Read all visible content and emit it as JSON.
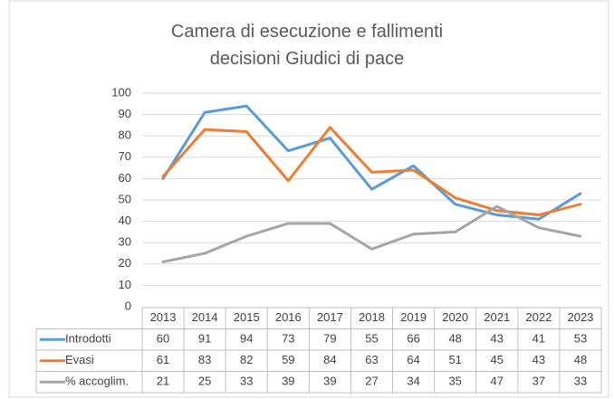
{
  "chart_data": {
    "type": "line",
    "title": "Camera di esecuzione e fallimenti decisioni Giudici di pace",
    "categories": [
      "2013",
      "2014",
      "2015",
      "2016",
      "2017",
      "2018",
      "2019",
      "2020",
      "2021",
      "2022",
      "2023"
    ],
    "series": [
      {
        "name": "Introdotti",
        "color": "#5b9bd5",
        "values": [
          60,
          91,
          94,
          73,
          79,
          55,
          66,
          48,
          43,
          41,
          53
        ]
      },
      {
        "name": "Evasi",
        "color": "#ed7d31",
        "values": [
          61,
          83,
          82,
          59,
          84,
          63,
          64,
          51,
          45,
          43,
          48
        ]
      },
      {
        "name": "% accoglim.",
        "color": "#a5a5a5",
        "values": [
          21,
          25,
          33,
          39,
          39,
          27,
          34,
          35,
          47,
          37,
          33
        ]
      }
    ],
    "ylim": [
      0,
      100
    ],
    "yticks": [
      0,
      10,
      20,
      30,
      40,
      50,
      60,
      70,
      80,
      90,
      100
    ],
    "grid": true
  }
}
